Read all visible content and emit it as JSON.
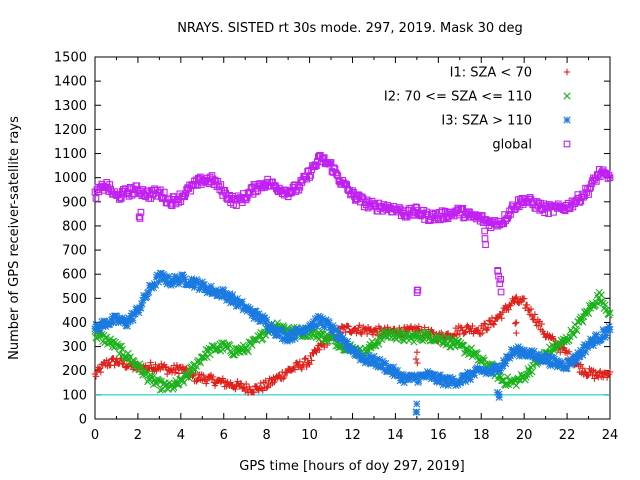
{
  "chart_data": {
    "type": "scatter",
    "title": "NRAYS. SISTED rt 30s mode. 297, 2019. Mask 30 deg",
    "xlabel": "GPS time [hours of doy 297, 2019]",
    "ylabel": "Number of GPS receiver-satellite rays",
    "xlim": [
      0,
      24
    ],
    "ylim": [
      0,
      1500
    ],
    "xticks": [
      "0",
      "2",
      "4",
      "6",
      "8",
      "10",
      "12",
      "14",
      "16",
      "18",
      "20",
      "22",
      "24"
    ],
    "yticks": [
      "0",
      "100",
      "200",
      "300",
      "400",
      "500",
      "600",
      "700",
      "800",
      "900",
      "1000",
      "1100",
      "1200",
      "1300",
      "1400",
      "1500"
    ],
    "legend_position": "top-right",
    "reference_line": {
      "y": 100,
      "color": "#00c8c8"
    },
    "series": [
      {
        "name": "I1: SZA < 70",
        "color": "#e0201a",
        "marker": "plus",
        "x": [
          0,
          0.5,
          1,
          1.5,
          2,
          2.5,
          3,
          3.5,
          4,
          4.5,
          5,
          5.5,
          6,
          6.5,
          7,
          7.5,
          8,
          8.5,
          9,
          9.5,
          10,
          10.5,
          11,
          11.5,
          12,
          12.5,
          13,
          13.5,
          14,
          14.5,
          15,
          15.5,
          16,
          16.5,
          17,
          17.5,
          18,
          18.5,
          19,
          19.5,
          20,
          20.5,
          21,
          21.5,
          22,
          22.5,
          23,
          23.5,
          24
        ],
        "y": [
          180,
          230,
          240,
          225,
          210,
          215,
          220,
          200,
          210,
          175,
          170,
          160,
          150,
          140,
          130,
          125,
          140,
          170,
          200,
          220,
          240,
          300,
          340,
          370,
          375,
          370,
          365,
          360,
          365,
          360,
          370,
          355,
          340,
          350,
          370,
          375,
          370,
          400,
          440,
          490,
          480,
          420,
          350,
          310,
          270,
          220,
          190,
          180,
          195
        ]
      },
      {
        "name": "I2: 70 <= SZA <= 110",
        "color": "#1ab21a",
        "marker": "cross",
        "x": [
          0,
          0.5,
          1,
          1.5,
          2,
          2.5,
          3,
          3.5,
          4,
          4.5,
          5,
          5.5,
          6,
          6.5,
          7,
          7.5,
          8,
          8.5,
          9,
          9.5,
          10,
          10.5,
          11,
          11.5,
          12,
          12.5,
          13,
          13.5,
          14,
          14.5,
          15,
          15.5,
          16,
          16.5,
          17,
          17.5,
          18,
          18.5,
          19,
          19.5,
          20,
          20.5,
          21,
          21.5,
          22,
          22.5,
          23,
          23.5,
          24
        ],
        "y": [
          350,
          330,
          300,
          260,
          220,
          170,
          140,
          130,
          150,
          200,
          260,
          290,
          300,
          280,
          290,
          320,
          370,
          390,
          370,
          360,
          360,
          350,
          330,
          310,
          290,
          270,
          310,
          350,
          350,
          335,
          340,
          345,
          335,
          320,
          300,
          280,
          240,
          210,
          160,
          150,
          175,
          230,
          270,
          300,
          330,
          390,
          450,
          510,
          440
        ]
      },
      {
        "name": "I3: SZA > 110",
        "color": "#1a7ae0",
        "marker": "star",
        "x": [
          0,
          0.5,
          1,
          1.5,
          2,
          2.5,
          3,
          3.5,
          4,
          4.5,
          5,
          5.5,
          6,
          6.5,
          7,
          7.5,
          8,
          8.5,
          9,
          9.5,
          10,
          10.5,
          11,
          11.5,
          12,
          12.5,
          13,
          13.5,
          14,
          14.5,
          15,
          15.5,
          16,
          16.5,
          17,
          17.5,
          18,
          18.5,
          19,
          19.5,
          20,
          20.5,
          21,
          21.5,
          22,
          22.5,
          23,
          23.5,
          24
        ],
        "y": [
          370,
          400,
          410,
          400,
          450,
          530,
          590,
          570,
          580,
          570,
          550,
          530,
          520,
          490,
          460,
          430,
          400,
          360,
          340,
          360,
          390,
          410,
          380,
          320,
          290,
          250,
          240,
          220,
          190,
          165,
          170,
          180,
          165,
          155,
          160,
          180,
          200,
          195,
          230,
          280,
          280,
          260,
          250,
          230,
          225,
          260,
          310,
          340,
          370
        ]
      },
      {
        "name": "global",
        "color": "#c020f0",
        "marker": "square",
        "x": [
          0,
          0.5,
          1,
          1.5,
          2,
          2.5,
          3,
          3.5,
          4,
          4.5,
          5,
          5.5,
          6,
          6.5,
          7,
          7.5,
          8,
          8.5,
          9,
          9.5,
          10,
          10.5,
          11,
          11.5,
          12,
          12.5,
          13,
          13.5,
          14,
          14.5,
          15,
          15.5,
          16,
          16.5,
          17,
          17.5,
          18,
          18.5,
          19,
          19.5,
          20,
          20.5,
          21,
          21.5,
          22,
          22.5,
          23,
          23.5,
          24
        ],
        "y": [
          930,
          970,
          920,
          940,
          950,
          930,
          940,
          900,
          920,
          960,
          990,
          990,
          940,
          900,
          920,
          960,
          980,
          960,
          940,
          960,
          1020,
          1080,
          1050,
          980,
          930,
          900,
          880,
          880,
          870,
          850,
          860,
          840,
          840,
          850,
          860,
          840,
          830,
          810,
          820,
          880,
          910,
          890,
          870,
          870,
          880,
          910,
          950,
          1020,
          1000
        ]
      }
    ],
    "outliers": [
      {
        "series": "global",
        "x": [
          2.1,
          15.0,
          18.2,
          18.8,
          18.9
        ],
        "y": [
          840,
          550,
          750,
          600,
          550
        ]
      },
      {
        "series": "I3: SZA > 110",
        "x": [
          15.0,
          18.8
        ],
        "y": [
          55,
          85
        ]
      },
      {
        "series": "I1: SZA < 70",
        "x": [
          15.0,
          19.6
        ],
        "y": [
          260,
          380
        ]
      }
    ]
  }
}
